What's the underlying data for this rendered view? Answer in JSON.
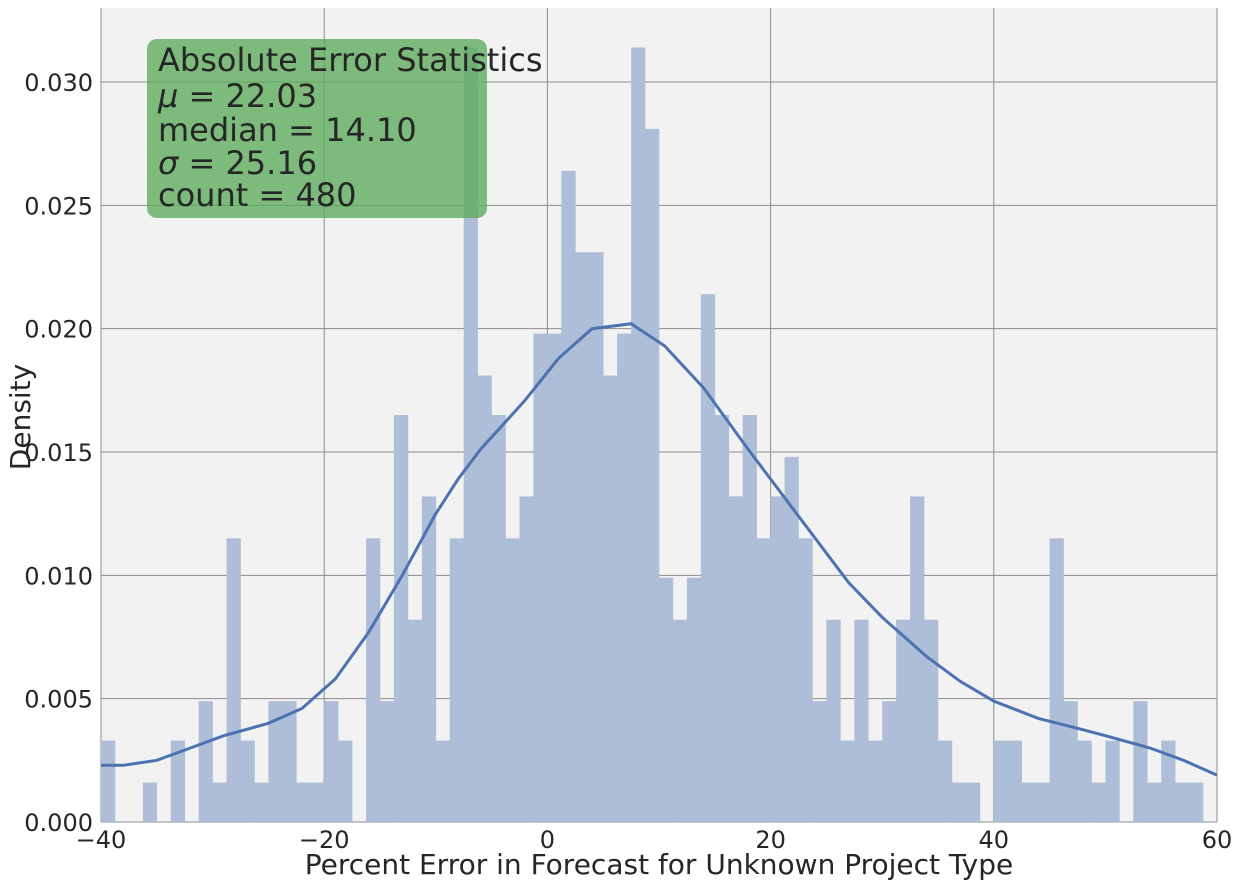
{
  "chart_data": {
    "type": "bar",
    "subtype": "histogram-with-kde",
    "title": "",
    "xlabel": "Percent Error in Forecast for Unknown Project Type",
    "ylabel": "Density",
    "xlim": [
      -40,
      60
    ],
    "ylim": [
      0,
      0.033
    ],
    "xticks": [
      -40,
      -20,
      0,
      20,
      40,
      60
    ],
    "xtick_labels": [
      "−40",
      "−20",
      "0",
      "20",
      "40",
      "60"
    ],
    "yticks": [
      0.0,
      0.005,
      0.01,
      0.015,
      0.02,
      0.025,
      0.03
    ],
    "ytick_labels": [
      "0.000",
      "0.005",
      "0.010",
      "0.015",
      "0.020",
      "0.025",
      "0.030"
    ],
    "grid": true,
    "bin_start": -40,
    "bin_width": 1.25,
    "bin_values": [
      0.0033,
      0,
      0,
      0.0016,
      0,
      0.0033,
      0,
      0.0049,
      0.0016,
      0.0115,
      0.0033,
      0.0016,
      0.0049,
      0.0049,
      0.0016,
      0.0016,
      0.0049,
      0.0033,
      0,
      0.0115,
      0.0049,
      0.0165,
      0.0082,
      0.0132,
      0.0033,
      0.0115,
      0.0314,
      0.0181,
      0.0165,
      0.0115,
      0.0132,
      0.0198,
      0.0198,
      0.0264,
      0.0231,
      0.0231,
      0.0181,
      0.0198,
      0.0314,
      0.0281,
      0.0099,
      0.0082,
      0.0099,
      0.0214,
      0.0165,
      0.0132,
      0.0165,
      0.0115,
      0.0132,
      0.0148,
      0.0115,
      0.0049,
      0.0082,
      0.0033,
      0.0082,
      0.0033,
      0.0049,
      0.0082,
      0.0132,
      0.0082,
      0.0033,
      0.0016,
      0.0016,
      0,
      0.0033,
      0.0033,
      0.0016,
      0.0016,
      0.0115,
      0.0049,
      0.0033,
      0.0016,
      0.0033,
      0,
      0.0049,
      0.0016,
      0.0033,
      0.0016,
      0.0016,
      0
    ],
    "kde_x": [
      -40,
      -38,
      -35,
      -32,
      -29,
      -25,
      -22,
      -19,
      -16,
      -13,
      -10,
      -8,
      -6,
      -4,
      -2,
      1,
      4,
      7.5,
      10.5,
      14,
      18,
      22,
      27,
      30,
      34,
      37,
      40,
      44,
      47.5,
      50,
      54,
      57,
      60
    ],
    "kde_y": [
      0.0023,
      0.0023,
      0.0025,
      0.003,
      0.0035,
      0.004,
      0.0046,
      0.0058,
      0.0077,
      0.01,
      0.0125,
      0.0139,
      0.0151,
      0.0161,
      0.0171,
      0.0188,
      0.02,
      0.0202,
      0.0193,
      0.0176,
      0.0151,
      0.0127,
      0.0097,
      0.0083,
      0.0067,
      0.0057,
      0.0049,
      0.0042,
      0.0038,
      0.0035,
      0.003,
      0.0025,
      0.0019
    ],
    "colors": {
      "bars": "#aebdd8",
      "kde_line": "#4c72b0",
      "plot_background": "#f2f2f2",
      "grid": "#8c8c8c",
      "stats_box": "#5fac5f",
      "text": "#262626"
    }
  },
  "stats_box": {
    "title": "Absolute Error Statistics",
    "lines": [
      {
        "symbol": "μ",
        "label": "",
        "value": "22.03"
      },
      {
        "symbol": "",
        "label": "median",
        "value": "14.10"
      },
      {
        "symbol": "σ",
        "label": "",
        "value": "25.16"
      },
      {
        "symbol": "",
        "label": "count",
        "value": "480"
      }
    ]
  }
}
